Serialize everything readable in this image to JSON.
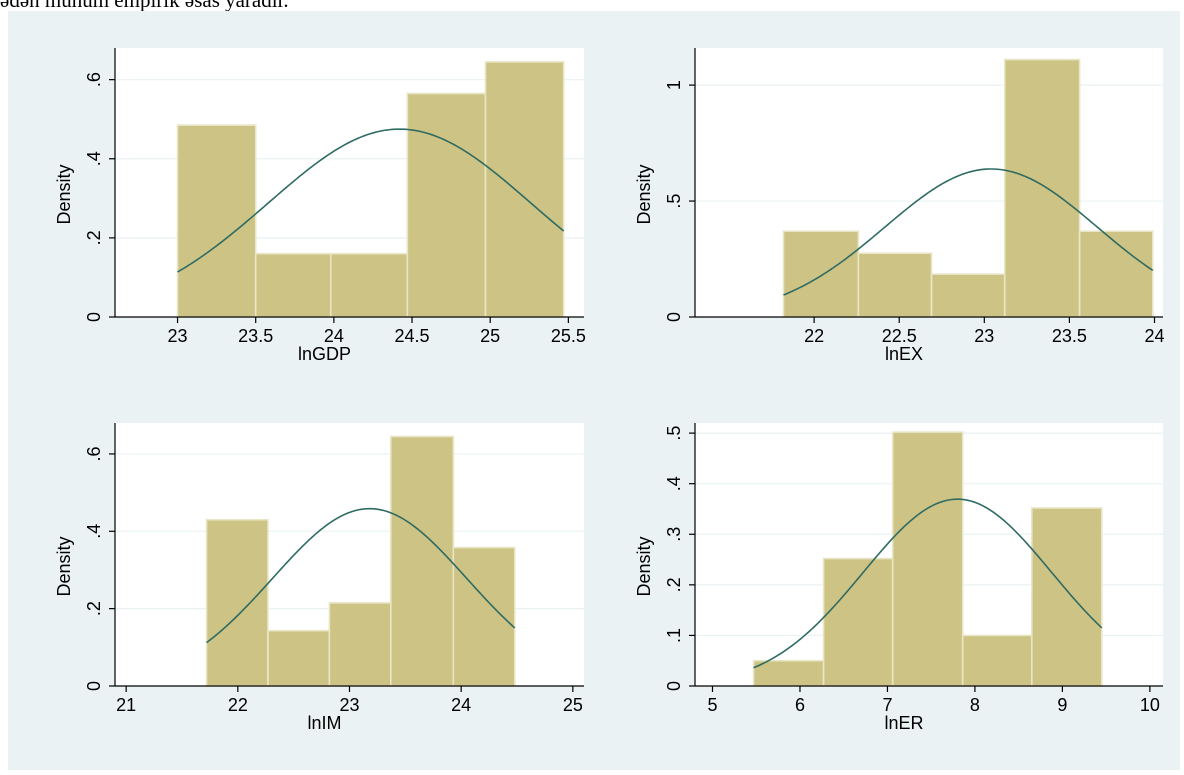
{
  "caption": "ədən mühüm empirik əsas yaradır.",
  "colors": {
    "figure_bg": "#eaf2f3",
    "plot_bg": "#ffffff",
    "bar_fill": "#cdc384",
    "bar_edge": "#e9e6c8",
    "curve": "#2f6b63",
    "grid": "#eaf2f3"
  },
  "chart_data": [
    {
      "type": "bar",
      "subtype": "histogram-with-normal-density",
      "xlabel": "lnGDP",
      "ylabel": "Density",
      "xlim": [
        22.6,
        25.6
      ],
      "ylim": [
        0,
        0.68
      ],
      "xticks": [
        23,
        23.5,
        24,
        24.5,
        25,
        25.5
      ],
      "xtick_labels": [
        "23",
        "23.5",
        "24",
        "24.5",
        "25",
        "25.5"
      ],
      "yticks": [
        0,
        0.2,
        0.4,
        0.6
      ],
      "ytick_labels": [
        "0",
        ".2",
        ".4",
        ".6"
      ],
      "bin_edges": [
        23.0,
        23.5,
        23.98,
        24.47,
        24.97,
        25.47
      ],
      "values": [
        0.485,
        0.16,
        0.16,
        0.565,
        0.645
      ],
      "normal_curve": {
        "mean": 24.42,
        "sd": 0.84
      }
    },
    {
      "type": "bar",
      "subtype": "histogram-with-normal-density",
      "xlabel": "lnEX",
      "ylabel": "Density",
      "xlim": [
        21.3,
        24.05
      ],
      "ylim": [
        0,
        1.16
      ],
      "xticks": [
        22,
        22.5,
        23,
        23.5,
        24
      ],
      "xtick_labels": [
        "22",
        "22.5",
        "23",
        "23.5",
        "24"
      ],
      "yticks": [
        0,
        0.5,
        1
      ],
      "ytick_labels": [
        "0",
        ".5",
        "1"
      ],
      "bin_edges": [
        21.82,
        22.26,
        22.69,
        23.12,
        23.56,
        23.99
      ],
      "values": [
        0.37,
        0.275,
        0.185,
        1.11,
        0.37
      ],
      "normal_curve": {
        "mean": 23.04,
        "sd": 0.625
      }
    },
    {
      "type": "bar",
      "subtype": "histogram-with-normal-density",
      "xlabel": "lnIM",
      "ylabel": "Density",
      "xlim": [
        20.9,
        25.1
      ],
      "ylim": [
        0,
        0.68
      ],
      "xticks": [
        21,
        22,
        23,
        24,
        25
      ],
      "xtick_labels": [
        "21",
        "22",
        "23",
        "24",
        "25"
      ],
      "yticks": [
        0,
        0.2,
        0.4,
        0.6
      ],
      "ytick_labels": [
        "0",
        ".2",
        ".4",
        ".6"
      ],
      "bin_edges": [
        21.72,
        22.27,
        22.82,
        23.37,
        23.93,
        24.48
      ],
      "values": [
        0.43,
        0.143,
        0.215,
        0.645,
        0.358
      ],
      "normal_curve": {
        "mean": 23.18,
        "sd": 0.87
      }
    },
    {
      "type": "bar",
      "subtype": "histogram-with-normal-density",
      "xlabel": "lnER",
      "ylabel": "Density",
      "xlim": [
        4.8,
        10.15
      ],
      "ylim": [
        0,
        0.52
      ],
      "xticks": [
        5,
        6,
        7,
        8,
        9,
        10
      ],
      "xtick_labels": [
        "5",
        "6",
        "7",
        "8",
        "9",
        "10"
      ],
      "yticks": [
        0,
        0.1,
        0.2,
        0.3,
        0.4,
        0.5
      ],
      "ytick_labels": [
        "0",
        ".1",
        ".2",
        ".3",
        ".4",
        ".5"
      ],
      "bin_edges": [
        5.47,
        6.27,
        7.06,
        7.86,
        8.65,
        9.45
      ],
      "values": [
        0.05,
        0.252,
        0.502,
        0.1,
        0.352
      ],
      "normal_curve": {
        "mean": 7.8,
        "sd": 1.08
      }
    }
  ]
}
